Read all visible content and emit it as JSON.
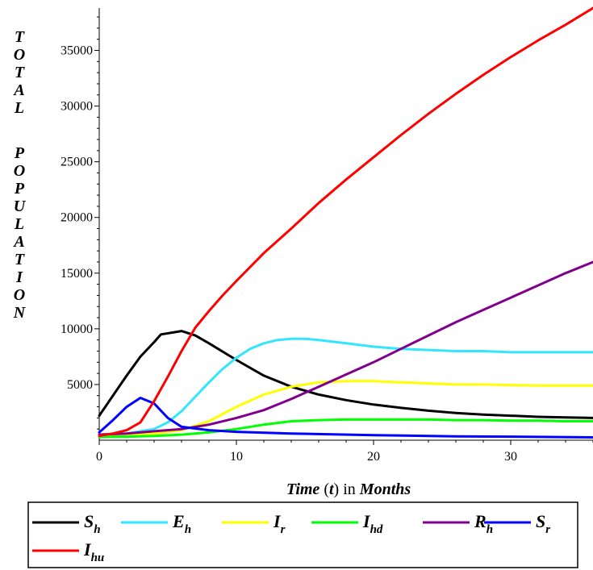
{
  "chart_data": {
    "type": "line",
    "title": "",
    "ylabel": "TOTAL POPULATION",
    "xlabel": {
      "prefix": "Time",
      "var": "t",
      "middle": "in",
      "unit": "Months"
    },
    "xlim": [
      0,
      36
    ],
    "ylim": [
      0,
      38800
    ],
    "xticks": [
      0,
      10,
      20,
      30
    ],
    "yticks": [
      5000,
      10000,
      15000,
      20000,
      25000,
      30000,
      35000
    ],
    "grid": false,
    "legend_placement": "bottom",
    "series": [
      {
        "name": "S",
        "sub": "h",
        "color": "#000000",
        "x": [
          0,
          1,
          2,
          3,
          4,
          4.5,
          6,
          7,
          8,
          10,
          12,
          14,
          16,
          18,
          20,
          22,
          24,
          26,
          28,
          30,
          32,
          34,
          36
        ],
        "y": [
          2200,
          4000,
          5800,
          7500,
          8800,
          9500,
          9800,
          9400,
          8700,
          7200,
          5800,
          4800,
          4100,
          3600,
          3200,
          2900,
          2650,
          2450,
          2300,
          2200,
          2100,
          2050,
          2000
        ]
      },
      {
        "name": "E",
        "sub": "h",
        "color": "#33e6ff",
        "x": [
          0,
          2,
          4,
          5,
          6,
          7,
          8,
          9,
          10,
          11,
          12,
          13,
          14,
          15,
          16,
          18,
          20,
          22,
          24,
          26,
          28,
          30,
          32,
          34,
          36
        ],
        "y": [
          500,
          600,
          1000,
          1600,
          2600,
          3900,
          5200,
          6400,
          7400,
          8200,
          8700,
          9000,
          9100,
          9100,
          9000,
          8700,
          8400,
          8200,
          8100,
          8000,
          8000,
          7900,
          7900,
          7900,
          7900
        ]
      },
      {
        "name": "I",
        "sub": "r",
        "color": "#ffff00",
        "x": [
          0,
          2,
          4,
          6,
          8,
          10,
          12,
          14,
          16,
          18,
          20,
          22,
          24,
          26,
          28,
          30,
          32,
          34,
          36
        ],
        "y": [
          400,
          450,
          600,
          900,
          1700,
          3000,
          4100,
          4800,
          5200,
          5300,
          5300,
          5200,
          5100,
          5000,
          5000,
          4950,
          4900,
          4900,
          4900
        ]
      },
      {
        "name": "I",
        "sub": "hd",
        "color": "#00ff00",
        "x": [
          0,
          2,
          4,
          6,
          8,
          10,
          12,
          14,
          16,
          18,
          20,
          22,
          24,
          26,
          28,
          30,
          32,
          34,
          36
        ],
        "y": [
          300,
          320,
          380,
          500,
          700,
          1000,
          1400,
          1700,
          1800,
          1850,
          1850,
          1850,
          1850,
          1800,
          1800,
          1750,
          1750,
          1700,
          1700
        ]
      },
      {
        "name": "R",
        "sub": "h",
        "color": "#80008c",
        "x": [
          0,
          2,
          4,
          6,
          8,
          10,
          12,
          14,
          16,
          18,
          20,
          22,
          24,
          26,
          28,
          30,
          32,
          34,
          36
        ],
        "y": [
          500,
          600,
          800,
          1000,
          1400,
          2000,
          2700,
          3700,
          4800,
          5900,
          7000,
          8200,
          9400,
          10600,
          11700,
          12800,
          13900,
          15000,
          16000
        ]
      },
      {
        "name": "S",
        "sub": "r",
        "color": "#0000ff",
        "x": [
          0,
          1,
          2,
          3,
          4,
          5,
          6,
          8,
          10,
          14,
          20,
          26,
          32,
          36
        ],
        "y": [
          700,
          1800,
          3000,
          3800,
          3300,
          2000,
          1200,
          900,
          750,
          600,
          450,
          350,
          300,
          250
        ]
      },
      {
        "name": "I",
        "sub": "hu",
        "color": "#ff0000",
        "x": [
          0,
          1,
          2,
          3,
          4,
          5,
          6,
          7,
          8,
          9,
          10,
          12,
          14,
          16,
          18,
          20,
          22,
          24,
          26,
          28,
          30,
          32,
          34,
          36
        ],
        "y": [
          400,
          600,
          900,
          1600,
          3500,
          5700,
          8000,
          10100,
          11600,
          13000,
          14300,
          16800,
          19000,
          21300,
          23400,
          25400,
          27400,
          29300,
          31100,
          32800,
          34400,
          35900,
          37300,
          38800
        ]
      }
    ]
  }
}
